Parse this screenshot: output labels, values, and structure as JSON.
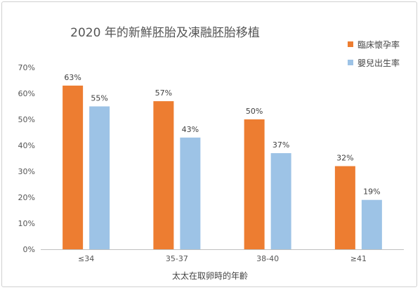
{
  "chart_data": {
    "type": "bar",
    "title": "2020 年的新鮮胚胎及凍融胚胎移植",
    "xlabel": "太太在取卵時的年齡",
    "ylabel": "",
    "ylim": [
      0,
      70
    ],
    "yticks": [
      "0%",
      "10%",
      "20%",
      "30%",
      "40%",
      "50%",
      "60%",
      "70%"
    ],
    "categories": [
      "≤34",
      "35-37",
      "38-40",
      "≥41"
    ],
    "series": [
      {
        "name": "臨床懷孕率",
        "values": [
          63,
          57,
          50,
          32
        ],
        "labels": [
          "63%",
          "57%",
          "50%",
          "32%"
        ],
        "color": "#ed7d31"
      },
      {
        "name": "嬰兒出生率",
        "values": [
          55,
          43,
          37,
          19
        ],
        "labels": [
          "55%",
          "43%",
          "37%",
          "19%"
        ],
        "color": "#9dc3e6"
      }
    ],
    "grid": false,
    "legend_position": "right"
  }
}
